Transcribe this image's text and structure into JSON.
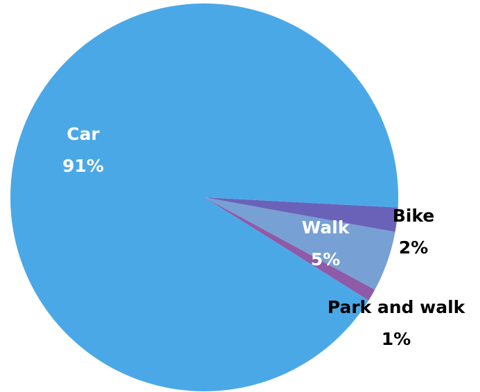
{
  "chart_data": {
    "type": "pie",
    "categories": [
      "Bike",
      "Walk",
      "Park and walk",
      "Car"
    ],
    "values": [
      2,
      5,
      1,
      91
    ],
    "value_labels": [
      "2%",
      "5%",
      "1%",
      "91%"
    ],
    "colors": [
      "#6a62b8",
      "#77a0d4",
      "#8f5aa8",
      "#4ba8e6"
    ]
  }
}
